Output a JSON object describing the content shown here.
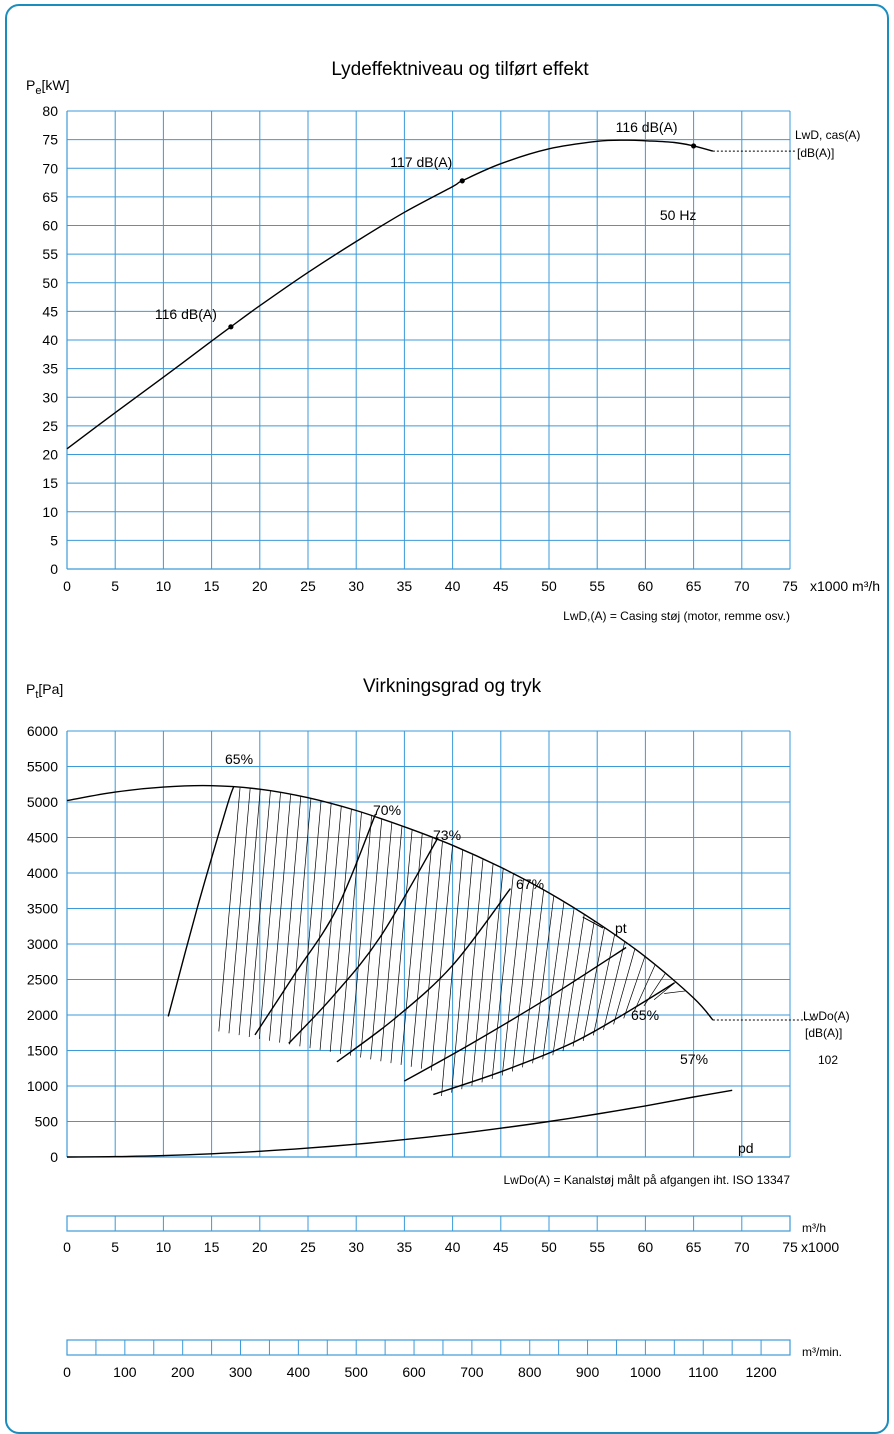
{
  "chart_data": [
    {
      "type": "line",
      "title": "Lydeffektniveau og tilført effekt",
      "ylabel": "Pe[kW]",
      "ylabel_sub": "e",
      "xlabel": "x1000 m³/h",
      "x_ticks": [
        0,
        5,
        10,
        15,
        20,
        25,
        30,
        35,
        40,
        45,
        50,
        55,
        60,
        65,
        70,
        75
      ],
      "y_ticks": [
        0,
        5,
        10,
        15,
        20,
        25,
        30,
        35,
        40,
        45,
        50,
        55,
        60,
        65,
        70,
        75,
        80
      ],
      "xlim": [
        0,
        75
      ],
      "ylim": [
        0,
        80
      ],
      "grid": true,
      "series": [
        {
          "x": [
            0,
            5,
            10,
            15,
            17,
            20,
            25,
            30,
            35,
            40,
            41,
            45,
            50,
            55,
            58,
            60,
            63,
            65,
            67
          ],
          "values": [
            21,
            27.3,
            33.5,
            39.8,
            42.3,
            46,
            51.8,
            57.2,
            62.3,
            66.8,
            67.8,
            70.8,
            73.4,
            74.7,
            74.9,
            74.8,
            74.5,
            73.9,
            73
          ]
        }
      ],
      "points": [
        {
          "x": 17,
          "y": 42.3,
          "label": "116 dB(A)"
        },
        {
          "x": 41,
          "y": 67.8,
          "label": "117 dB(A)"
        },
        {
          "x": 65,
          "y": 73.9,
          "label": "116 dB(A)"
        }
      ],
      "annotations": {
        "freq": "50 Hz",
        "lwd_label_1": "LwD, cas(A)",
        "lwd_label_2": "[dB(A)]",
        "footnote": "LwD,(A) = Casing støj (motor, remme osv.)"
      }
    },
    {
      "type": "line",
      "title": "Virkningsgrad og tryk",
      "ylabel": "Pt[Pa]",
      "ylabel_sub": "t",
      "x_ticks": [
        0,
        5,
        10,
        15,
        20,
        25,
        30,
        35,
        40,
        45,
        50,
        55,
        60,
        65,
        70,
        75
      ],
      "y_ticks": [
        0,
        500,
        1000,
        1500,
        2000,
        2500,
        3000,
        3500,
        4000,
        4500,
        5000,
        5500,
        6000
      ],
      "xlim": [
        0,
        75
      ],
      "ylim": [
        0,
        6000
      ],
      "grid": true,
      "series": [
        {
          "name": "pt",
          "x": [
            0,
            5,
            10,
            15,
            20,
            25,
            30,
            35,
            40,
            45,
            50,
            55,
            60,
            65,
            67
          ],
          "values": [
            5020,
            5140,
            5210,
            5230,
            5180,
            5060,
            4880,
            4650,
            4390,
            4080,
            3720,
            3300,
            2820,
            2240,
            1930
          ]
        },
        {
          "name": "pd",
          "x": [
            0,
            5,
            10,
            15,
            20,
            25,
            30,
            35,
            40,
            45,
            50,
            55,
            60,
            65,
            69
          ],
          "values": [
            0,
            5,
            20,
            45,
            80,
            125,
            180,
            245,
            320,
            405,
            500,
            605,
            720,
            845,
            940
          ]
        }
      ],
      "efficiency_lines": [
        {
          "label": "65%",
          "x": [
            10.5,
            13.5,
            16.5,
            17.3
          ],
          "values": [
            1980,
            3500,
            4900,
            5220
          ]
        },
        {
          "label": "70%",
          "x": [
            19.5,
            23.5,
            28,
            32
          ],
          "values": [
            1720,
            2550,
            3500,
            4830
          ]
        },
        {
          "label": "73%",
          "x": [
            23,
            27.5,
            32.5,
            38.5
          ],
          "values": [
            1600,
            2250,
            3100,
            4500
          ]
        },
        {
          "label": "67%",
          "x": [
            28,
            34,
            40,
            46
          ],
          "values": [
            1340,
            1950,
            2700,
            3780
          ]
        },
        {
          "label": "65%",
          "x": [
            35,
            42,
            50,
            58
          ],
          "values": [
            1070,
            1600,
            2250,
            2950
          ]
        },
        {
          "label": "57%",
          "x": [
            38,
            45,
            52,
            57,
            63
          ],
          "values": [
            880,
            1200,
            1580,
            1950,
            2450
          ]
        }
      ],
      "annotations": {
        "pt_label": "pt",
        "pd_label": "pd",
        "lwdo_label_1": "LwDo(A)",
        "lwdo_label_2": "[dB(A)]",
        "lwdo_value": "102",
        "footnote": "LwDo(A) = Kanalstøj målt på afgangen iht. ISO 13347"
      }
    }
  ],
  "scale_m3h": {
    "ticks": [
      "0",
      "5",
      "10",
      "15",
      "20",
      "25",
      "30",
      "35",
      "40",
      "45",
      "50",
      "55",
      "60",
      "65",
      "70",
      "75"
    ],
    "unit": "m³/h",
    "suffix": "x1000"
  },
  "scale_m3min": {
    "ticks": [
      "0",
      "100",
      "200",
      "300",
      "400",
      "500",
      "600",
      "700",
      "800",
      "900",
      "1000",
      "1100",
      "1200"
    ],
    "unit": "m³/min."
  },
  "colors": {
    "grid": "#3c9ad8",
    "frame": "#1a8dbf",
    "curve": "#000000"
  }
}
